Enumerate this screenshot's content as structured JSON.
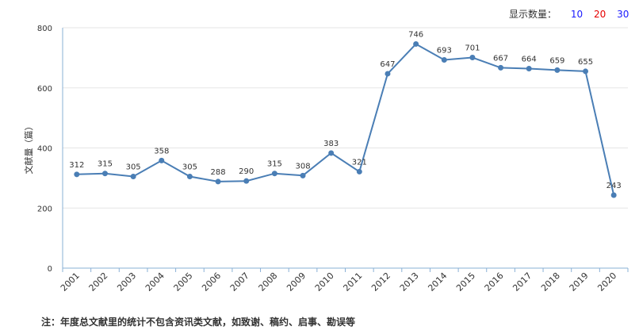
{
  "controls": {
    "display_count_label": "显示数量：",
    "options": [
      "10",
      "20",
      "30"
    ]
  },
  "footnote": "注：年度总文献里的统计不包含资讯类文献，如致谢、稿约、启事、勘误等",
  "colors": {
    "line": "#4a7eb5",
    "axis": "#8ab0d6",
    "grid": "#e6e6e6"
  },
  "chart_data": {
    "type": "line",
    "title": "",
    "xlabel": "",
    "ylabel": "文献量（篇）",
    "ylim": [
      0,
      800
    ],
    "yticks": [
      0,
      200,
      400,
      600,
      800
    ],
    "grid": "horizontal",
    "categories": [
      "2001",
      "2002",
      "2003",
      "2004",
      "2005",
      "2006",
      "2007",
      "2008",
      "2009",
      "2010",
      "2011",
      "2012",
      "2013",
      "2014",
      "2015",
      "2016",
      "2017",
      "2018",
      "2019",
      "2020"
    ],
    "series": [
      {
        "values": [
          312,
          315,
          305,
          358,
          305,
          288,
          290,
          315,
          308,
          383,
          321,
          647,
          746,
          693,
          701,
          667,
          664,
          659,
          655,
          243
        ]
      }
    ]
  }
}
